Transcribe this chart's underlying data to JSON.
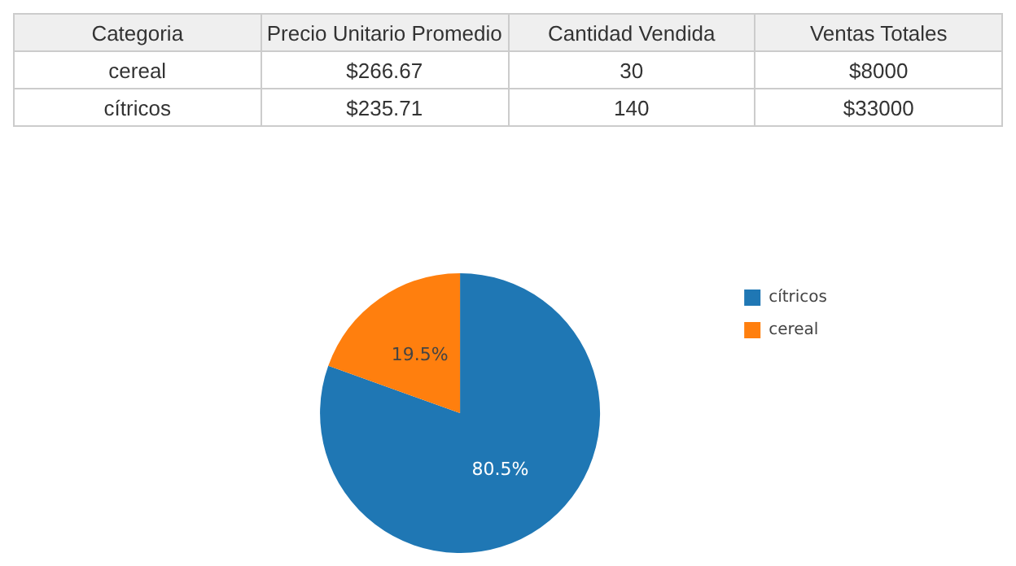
{
  "chart_data": [
    {
      "type": "other",
      "annotations": [
        "Categoria",
        "Precio Unitario Promedio",
        "Cantidad Vendida",
        "Ventas Totales",
        "cereal",
        "$266.67",
        "30",
        "$8000",
        "cítricos",
        "$235.71",
        "140",
        "$33000"
      ]
    },
    {
      "type": "pie",
      "categories": [
        "cítricos",
        "cereal"
      ],
      "values": [
        80.5,
        19.5
      ],
      "colors": [
        "#1f77b4",
        "#ff7f0e"
      ],
      "value_labels": [
        "80.5%",
        "19.5%"
      ],
      "legend": "right"
    }
  ]
}
